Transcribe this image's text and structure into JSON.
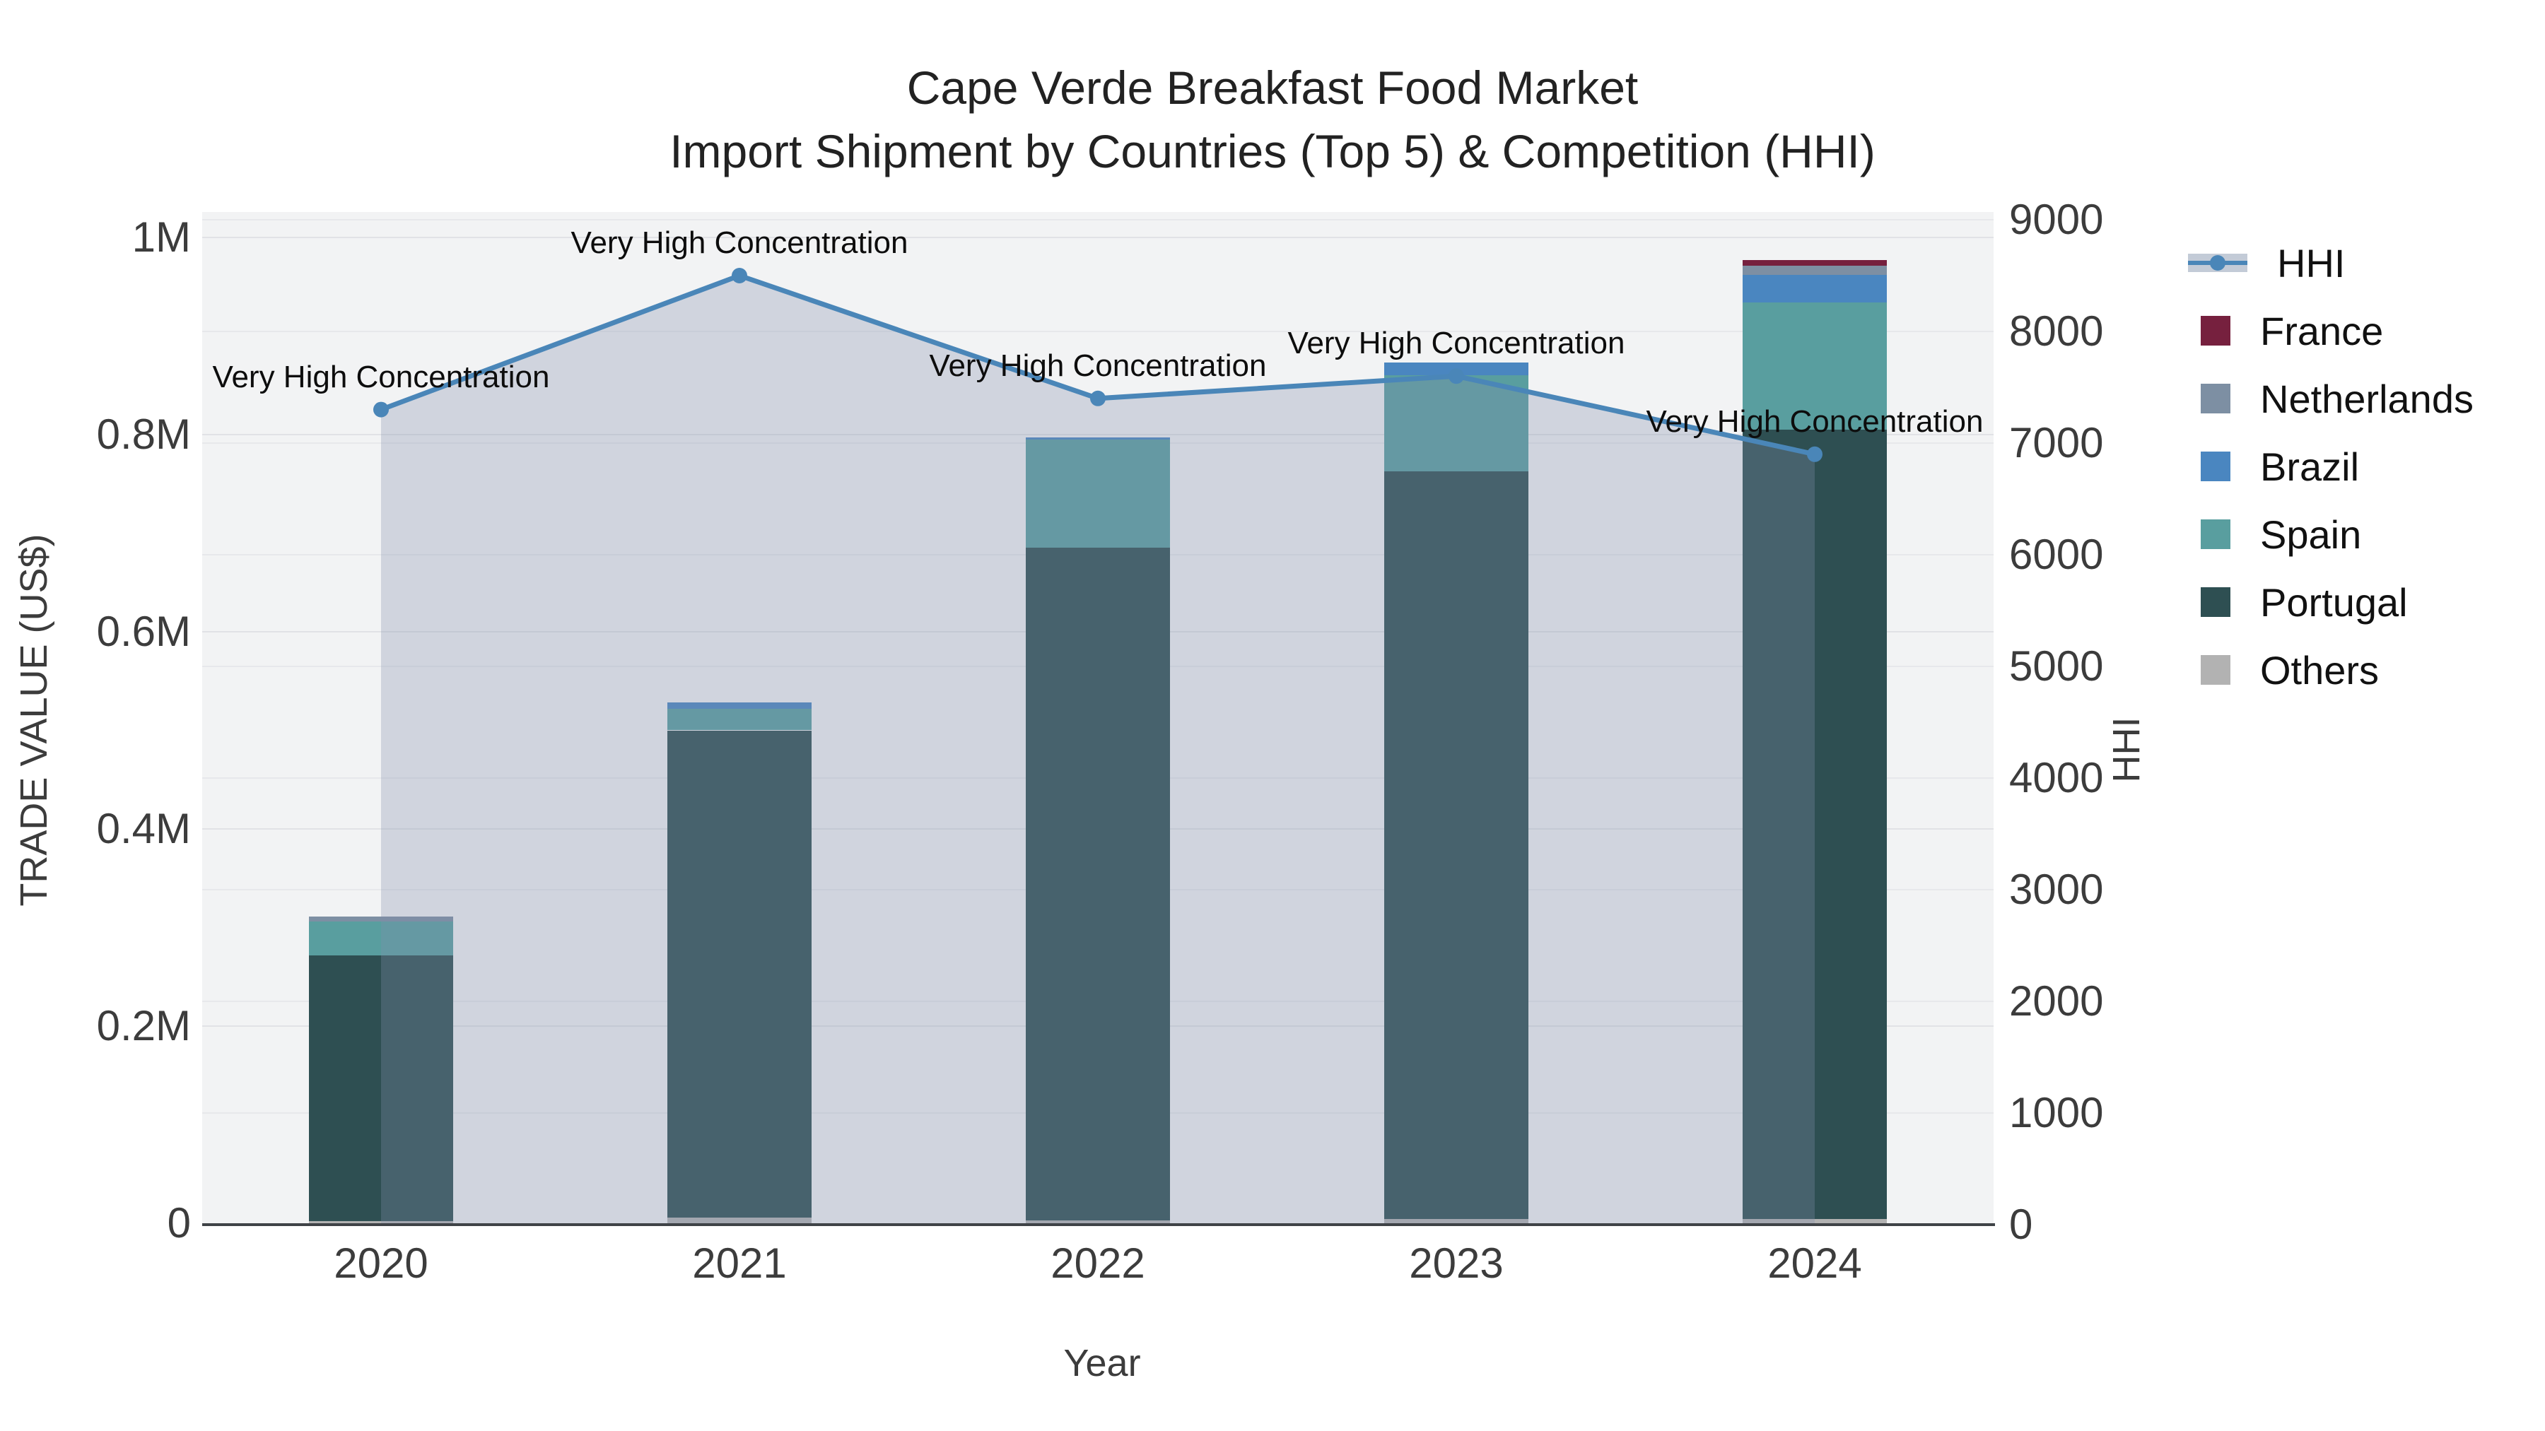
{
  "title": {
    "line1": "Cape Verde Breakfast Food Market",
    "line2": "Import Shipment by Countries (Top 5) & Competition (HHI)"
  },
  "axes": {
    "x": {
      "title": "Year"
    },
    "y_left": {
      "title": "TRADE VALUE (US$)"
    },
    "y_right": {
      "title": "HHI"
    }
  },
  "legend": {
    "items": [
      {
        "label": "HHI",
        "kind": "line",
        "color_key": "hhi_line"
      },
      {
        "label": "France",
        "kind": "swatch",
        "color_key": "france"
      },
      {
        "label": "Netherlands",
        "kind": "swatch",
        "color_key": "netherlands"
      },
      {
        "label": "Brazil",
        "kind": "swatch",
        "color_key": "brazil"
      },
      {
        "label": "Spain",
        "kind": "swatch",
        "color_key": "spain"
      },
      {
        "label": "Portugal",
        "kind": "swatch",
        "color_key": "portugal"
      },
      {
        "label": "Others",
        "kind": "swatch",
        "color_key": "others"
      }
    ]
  },
  "colors": {
    "hhi_line": "#4A86B8",
    "hhi_fill": "rgba(130,143,171,0.30)",
    "france": "#76203E",
    "netherlands": "#7D8FA3",
    "brazil": "#4A86C0",
    "spain": "#599E9F",
    "portugal": "#2E4F52",
    "others": "#B2B2B2",
    "plot_bg": "#F2F3F4",
    "grid": "#E1E2E6",
    "axis_line": "#3F4347"
  },
  "chart_data": {
    "type": "bar+line",
    "title": "Cape Verde Breakfast Food Market — Import Shipment by Countries (Top 5) & Competition (HHI)",
    "categories": [
      "2020",
      "2021",
      "2022",
      "2023",
      "2024"
    ],
    "xlabel": "Year",
    "ylabel_left": "TRADE VALUE (US$)",
    "ylabel_right": "HHI",
    "bar_value_unit": "US$",
    "stack_order_bottom_to_top": [
      "Others",
      "Portugal",
      "Spain",
      "Brazil",
      "Netherlands",
      "France"
    ],
    "series": [
      {
        "name": "Others",
        "color_key": "others",
        "values": [
          2000,
          6000,
          3000,
          4000,
          4000
        ]
      },
      {
        "name": "Portugal",
        "color_key": "portugal",
        "values": [
          270000,
          494000,
          682000,
          759000,
          801000
        ]
      },
      {
        "name": "Spain",
        "color_key": "spain",
        "values": [
          34000,
          22000,
          110000,
          97000,
          129000
        ]
      },
      {
        "name": "Brazil",
        "color_key": "brazil",
        "values": [
          0,
          6000,
          2000,
          13000,
          28000
        ]
      },
      {
        "name": "Netherlands",
        "color_key": "netherlands",
        "values": [
          5000,
          0,
          0,
          0,
          9000
        ]
      },
      {
        "name": "France",
        "color_key": "france",
        "values": [
          0,
          0,
          0,
          0,
          6000
        ]
      }
    ],
    "bar_totals_approx": [
      311000,
      528000,
      797000,
      873000,
      977000
    ],
    "line_series": {
      "name": "HHI",
      "values": [
        7300,
        8500,
        7400,
        7600,
        6900
      ],
      "axis": "right",
      "fill_to_zero": true
    },
    "annotations": {
      "text": "Very High Concentration",
      "on_points": [
        0,
        1,
        2,
        3,
        4
      ]
    },
    "y_left_axis": {
      "tick_labels": [
        "0",
        "0.2M",
        "0.4M",
        "0.6M",
        "0.8M",
        "1M"
      ],
      "tick_values": [
        0,
        200000,
        400000,
        600000,
        800000,
        1000000
      ],
      "range": [
        0,
        1026000
      ]
    },
    "y_right_axis": {
      "tick_labels": [
        "0",
        "1000",
        "2000",
        "3000",
        "4000",
        "5000",
        "6000",
        "7000",
        "8000",
        "9000"
      ],
      "tick_values": [
        0,
        1000,
        2000,
        3000,
        4000,
        5000,
        6000,
        7000,
        8000,
        9000
      ],
      "range": [
        0,
        9070
      ]
    },
    "grid": true,
    "legend_position": "right"
  }
}
